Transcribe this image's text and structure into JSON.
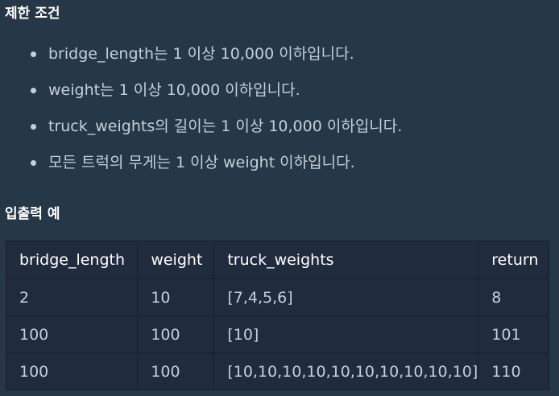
{
  "sections": {
    "constraints_title": "제한 조건",
    "examples_title": "입출력 예"
  },
  "constraints": [
    "bridge_length는 1 이상 10,000 이하입니다.",
    "weight는 1 이상 10,000 이하입니다.",
    "truck_weights의 길이는 1 이상 10,000 이하입니다.",
    "모든 트럭의 무게는 1 이상 weight 이하입니다."
  ],
  "table": {
    "headers": [
      "bridge_length",
      "weight",
      "truck_weights",
      "return"
    ],
    "rows": [
      [
        "2",
        "10",
        "[7,4,5,6]",
        "8"
      ],
      [
        "100",
        "100",
        "[10]",
        "101"
      ],
      [
        "100",
        "100",
        "[10,10,10,10,10,10,10,10,10,10]",
        "110"
      ]
    ]
  },
  "colors": {
    "background": "#263747",
    "table_background": "#202b3d",
    "text": "#c4d0dc",
    "heading": "#ffffff"
  }
}
